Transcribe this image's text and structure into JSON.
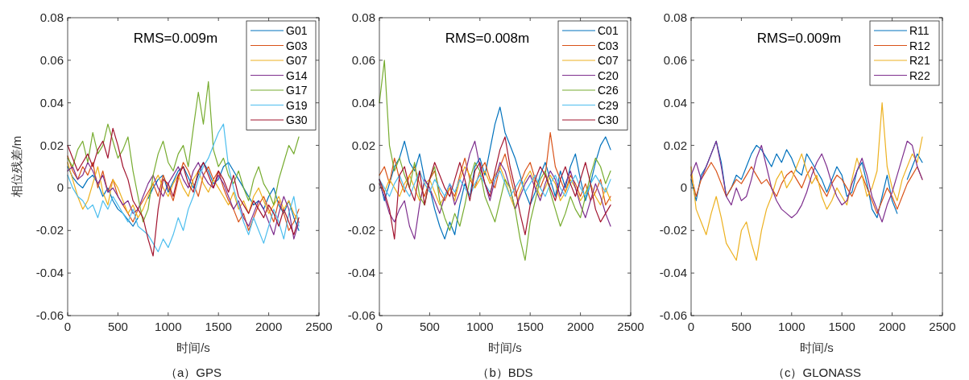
{
  "chart_data": [
    {
      "type": "line",
      "title": "（a）GPS",
      "xlabel": "时间/s",
      "ylabel": "相位残差/m",
      "annotations": [
        "RMS=0.009m"
      ],
      "legend": "top right",
      "xlim": [
        0,
        2500
      ],
      "xticks": [
        0,
        500,
        1000,
        1500,
        2000,
        2500
      ],
      "ylim": [
        -0.06,
        0.08
      ],
      "yticks": [
        -0.06,
        -0.04,
        -0.02,
        0,
        0.02,
        0.04,
        0.06,
        0.08
      ],
      "x": [
        0,
        50,
        100,
        150,
        200,
        250,
        300,
        350,
        400,
        450,
        500,
        550,
        600,
        650,
        700,
        750,
        800,
        850,
        900,
        950,
        1000,
        1050,
        1100,
        1150,
        1200,
        1250,
        1300,
        1350,
        1400,
        1450,
        1500,
        1550,
        1600,
        1650,
        1700,
        1750,
        1800,
        1850,
        1900,
        1950,
        2000,
        2050,
        2100,
        2150,
        2200,
        2250,
        2300
      ],
      "series": [
        {
          "name": "G01",
          "color": "#0072bd",
          "values": [
            0.01,
            0.005,
            0.002,
            0.0,
            0.004,
            0.006,
            0.002,
            -0.004,
            0.0,
            -0.006,
            -0.01,
            -0.012,
            -0.015,
            -0.018,
            -0.014,
            null,
            -0.005,
            0.0,
            0.004,
            0.006,
            -0.002,
            0.003,
            0.008,
            0.01,
            0.005,
            0.0,
            0.006,
            0.012,
            0.008,
            0.002,
            0.004,
            0.01,
            0.012,
            0.008,
            0.004,
            0.0,
            -0.004,
            -0.008,
            -0.006,
            -0.01,
            -0.004,
            0.0,
            -0.008,
            -0.012,
            -0.006,
            -0.014,
            -0.02
          ]
        },
        {
          "name": "G03",
          "color": "#d95319",
          "values": [
            0.015,
            0.008,
            0.004,
            0.01,
            0.006,
            0.012,
            0.0,
            0.008,
            -0.002,
            0.004,
            -0.004,
            -0.008,
            -0.012,
            -0.016,
            -0.01,
            -0.006,
            -0.002,
            0.002,
            -0.004,
            0.006,
            0.0,
            -0.006,
            0.004,
            0.012,
            0.008,
            0.002,
            -0.004,
            0.006,
            0.01,
            0.004,
            0.008,
            0.0,
            -0.006,
            -0.01,
            -0.016,
            -0.012,
            -0.02,
            -0.014,
            -0.008,
            -0.004,
            -0.01,
            -0.016,
            -0.006,
            -0.012,
            -0.02,
            -0.016,
            -0.01
          ]
        },
        {
          "name": "G07",
          "color": "#edb120",
          "values": [
            0.012,
            0.004,
            -0.004,
            -0.01,
            -0.006,
            0.002,
            0.01,
            -0.002,
            -0.008,
            0.004,
            0.0,
            -0.006,
            -0.012,
            -0.008,
            -0.014,
            -0.01,
            -0.004,
            0.002,
            0.006,
            0.0,
            -0.004,
            0.002,
            0.006,
            0.0,
            -0.004,
            0.004,
            0.008,
            0.002,
            -0.002,
            0.004,
            0.0,
            -0.004,
            -0.008,
            -0.002,
            -0.01,
            -0.006,
            -0.012,
            -0.004,
            0.0,
            -0.006,
            -0.012,
            -0.008,
            -0.004,
            -0.01,
            -0.006,
            -0.012,
            -0.016
          ]
        },
        {
          "name": "G14",
          "color": "#7e2f8e",
          "values": [
            0.008,
            0.01,
            0.004,
            0.006,
            0.012,
            0.008,
            0.002,
            0.006,
            -0.002,
            0.0,
            -0.004,
            -0.008,
            -0.006,
            -0.012,
            -0.01,
            -0.004,
            0.002,
            0.006,
            0.0,
            -0.004,
            0.002,
            0.006,
            0.01,
            0.004,
            0.0,
            0.008,
            0.012,
            0.006,
            0.002,
            0.0,
            0.006,
            0.002,
            -0.004,
            -0.01,
            -0.006,
            -0.014,
            -0.018,
            -0.012,
            -0.006,
            -0.01,
            -0.016,
            -0.022,
            -0.012,
            -0.004,
            -0.01,
            -0.024,
            -0.016
          ]
        },
        {
          "name": "G17",
          "color": "#77ac30",
          "values": [
            0.014,
            0.01,
            0.018,
            0.022,
            0.012,
            0.026,
            0.016,
            0.02,
            0.03,
            0.022,
            0.014,
            0.018,
            0.024,
            0.008,
            -0.004,
            -0.016,
            -0.01,
            0.006,
            0.016,
            0.022,
            0.012,
            0.008,
            0.016,
            0.02,
            0.01,
            0.028,
            0.045,
            0.03,
            0.05,
            0.018,
            0.01,
            0.014,
            0.006,
            0.002,
            0.008,
            0.0,
            -0.006,
            0.004,
            0.01,
            0.002,
            -0.002,
            -0.008,
            0.004,
            0.012,
            0.02,
            0.016,
            0.024
          ]
        },
        {
          "name": "G19",
          "color": "#4dbeee",
          "values": [
            0.006,
            0.0,
            -0.004,
            -0.006,
            -0.01,
            -0.008,
            -0.014,
            -0.006,
            -0.01,
            -0.004,
            -0.008,
            -0.012,
            -0.016,
            -0.01,
            -0.018,
            -0.02,
            -0.022,
            -0.026,
            -0.03,
            -0.024,
            -0.028,
            -0.022,
            -0.014,
            -0.02,
            -0.01,
            -0.004,
            0.004,
            0.01,
            0.014,
            0.02,
            0.026,
            0.03,
            0.01,
            0.0,
            -0.008,
            -0.016,
            -0.022,
            -0.014,
            -0.02,
            -0.026,
            -0.018,
            -0.01,
            -0.016,
            -0.024,
            -0.012,
            -0.004,
            -0.018
          ]
        },
        {
          "name": "G30",
          "color": "#a2142f",
          "values": [
            0.02,
            0.014,
            0.008,
            0.012,
            0.016,
            0.01,
            0.018,
            0.022,
            0.014,
            0.028,
            0.02,
            0.01,
            0.004,
            -0.006,
            -0.01,
            -0.014,
            -0.024,
            -0.032,
            -0.01,
            0.004,
            0.002,
            -0.004,
            0.006,
            0.01,
            0.002,
            -0.002,
            0.008,
            0.012,
            0.006,
            0.0,
            0.008,
            0.004,
            -0.002,
            0.006,
            -0.004,
            -0.008,
            -0.012,
            -0.006,
            -0.01,
            -0.014,
            -0.008,
            -0.012,
            -0.018,
            -0.01,
            -0.016,
            -0.022,
            -0.014
          ]
        }
      ]
    },
    {
      "type": "line",
      "title": "（b）BDS",
      "xlabel": "时间/s",
      "annotations": [
        "RMS=0.008m"
      ],
      "legend": "top right",
      "xlim": [
        0,
        2500
      ],
      "xticks": [
        0,
        500,
        1000,
        1500,
        2000,
        2500
      ],
      "ylim": [
        -0.06,
        0.08
      ],
      "yticks": [
        -0.06,
        -0.04,
        -0.02,
        0,
        0.02,
        0.04,
        0.06,
        0.08
      ],
      "x": [
        0,
        50,
        100,
        150,
        200,
        250,
        300,
        350,
        400,
        450,
        500,
        550,
        600,
        650,
        700,
        750,
        800,
        850,
        900,
        950,
        1000,
        1050,
        1100,
        1150,
        1200,
        1250,
        1300,
        1350,
        1400,
        1450,
        1500,
        1550,
        1600,
        1650,
        1700,
        1750,
        1800,
        1850,
        1900,
        1950,
        2000,
        2050,
        2100,
        2150,
        2200,
        2250,
        2300
      ],
      "series": [
        {
          "name": "C01",
          "color": "#0072bd",
          "values": [
            0.004,
            -0.006,
            0.002,
            0.01,
            0.014,
            0.022,
            0.012,
            0.008,
            0.016,
            0.004,
            0.0,
            -0.01,
            -0.018,
            -0.024,
            -0.016,
            -0.022,
            -0.008,
            0.002,
            -0.004,
            0.01,
            0.014,
            0.006,
            0.018,
            0.03,
            0.038,
            0.026,
            0.02,
            0.014,
            0.006,
            -0.002,
            -0.008,
            -0.002,
            0.006,
            0.012,
            0.004,
            -0.004,
            0.008,
            0.0,
            0.01,
            0.016,
            0.004,
            -0.006,
            0.002,
            0.012,
            0.02,
            0.024,
            0.018
          ]
        },
        {
          "name": "C03",
          "color": "#d95319",
          "values": [
            0.006,
            0.01,
            0.002,
            0.014,
            0.004,
            -0.002,
            0.006,
            0.01,
            0.002,
            -0.004,
            0.004,
            0.008,
            -0.002,
            -0.006,
            0.0,
            -0.004,
            0.006,
            0.014,
            0.004,
            0.0,
            0.008,
            0.012,
            0.004,
            0.0,
            0.01,
            0.016,
            0.006,
            -0.004,
            0.002,
            0.008,
            0.012,
            0.004,
            0.0,
            0.006,
            0.026,
            0.01,
            0.004,
            -0.002,
            0.006,
            0.002,
            -0.004,
            0.002,
            -0.006,
            -0.002,
            0.004,
            -0.008,
            -0.004
          ]
        },
        {
          "name": "C07",
          "color": "#edb120",
          "values": [
            0.002,
            -0.002,
            0.004,
            0.0,
            -0.004,
            0.002,
            0.006,
            0.0,
            -0.006,
            0.002,
            0.004,
            -0.002,
            -0.008,
            -0.004,
            0.0,
            -0.006,
            0.004,
            0.01,
            0.006,
            0.0,
            0.004,
            0.008,
            0.002,
            0.006,
            0.01,
            0.004,
            -0.004,
            -0.01,
            -0.002,
            0.004,
            0.008,
            0.002,
            -0.004,
            0.0,
            0.006,
            0.002,
            -0.006,
            -0.002,
            0.004,
            0.0,
            -0.006,
            -0.002,
            0.002,
            -0.004,
            -0.008,
            0.0,
            -0.006
          ]
        },
        {
          "name": "C20",
          "color": "#7e2f8e",
          "values": [
            0.002,
            -0.004,
            -0.012,
            -0.016,
            -0.01,
            -0.006,
            -0.018,
            -0.024,
            -0.008,
            0.004,
            0.0,
            -0.006,
            -0.012,
            -0.004,
            0.002,
            -0.008,
            -0.002,
            0.006,
            0.016,
            0.022,
            0.01,
            0.002,
            -0.006,
            0.004,
            0.012,
            0.008,
            0.0,
            -0.01,
            -0.004,
            0.002,
            0.006,
            0.0,
            -0.006,
            0.002,
            0.008,
            0.004,
            -0.004,
            0.002,
            0.008,
            0.0,
            -0.008,
            -0.014,
            -0.006,
            0.002,
            -0.004,
            -0.012,
            -0.018
          ]
        },
        {
          "name": "C26",
          "color": "#77ac30",
          "values": [
            0.04,
            0.06,
            0.02,
            0.008,
            0.014,
            0.006,
            0.0,
            0.012,
            -0.004,
            -0.008,
            0.004,
            0.01,
            -0.006,
            -0.014,
            -0.02,
            -0.012,
            -0.018,
            -0.008,
            0.004,
            0.012,
            0.008,
            -0.004,
            -0.01,
            -0.016,
            -0.006,
            0.004,
            0.0,
            -0.01,
            -0.024,
            -0.034,
            -0.016,
            -0.006,
            0.004,
            0.008,
            -0.002,
            -0.01,
            -0.018,
            -0.012,
            -0.004,
            -0.01,
            -0.014,
            -0.004,
            0.006,
            0.014,
            0.01,
            0.002,
            0.008
          ]
        },
        {
          "name": "C29",
          "color": "#4dbeee",
          "values": [
            0.004,
            0.0,
            -0.004,
            0.002,
            0.006,
            0.0,
            -0.004,
            0.002,
            0.008,
            0.002,
            -0.002,
            0.004,
            0.0,
            -0.004,
            0.002,
            -0.002,
            0.004,
            0.0,
            -0.004,
            0.002,
            0.006,
            0.002,
            -0.002,
            0.004,
            0.008,
            0.002,
            -0.004,
            0.0,
            0.004,
            -0.002,
            0.002,
            0.006,
            0.0,
            -0.004,
            0.002,
            0.006,
            0.0,
            -0.004,
            0.002,
            0.006,
            0.0,
            -0.004,
            0.002,
            0.006,
            0.002,
            -0.002,
            0.004
          ]
        },
        {
          "name": "C30",
          "color": "#a2142f",
          "values": [
            0.004,
            -0.002,
            -0.01,
            -0.024,
            0.006,
            0.01,
            0.0,
            -0.006,
            0.008,
            -0.008,
            0.004,
            0.012,
            0.006,
            0.0,
            -0.004,
            0.004,
            0.012,
            0.004,
            -0.006,
            0.008,
            0.012,
            0.002,
            -0.004,
            0.008,
            0.018,
            0.024,
            0.01,
            0.0,
            -0.012,
            -0.022,
            -0.008,
            0.004,
            0.01,
            0.006,
            0.0,
            -0.006,
            0.004,
            0.01,
            0.002,
            -0.004,
            0.004,
            0.012,
            0.002,
            -0.01,
            -0.016,
            -0.012,
            -0.008
          ]
        }
      ]
    },
    {
      "type": "line",
      "title": "（c）GLONASS",
      "xlabel": "时间/s",
      "annotations": [
        "RMS=0.009m"
      ],
      "legend": "top right",
      "xlim": [
        0,
        2500
      ],
      "xticks": [
        0,
        500,
        1000,
        1500,
        2000,
        2500
      ],
      "ylim": [
        -0.06,
        0.08
      ],
      "yticks": [
        -0.06,
        -0.04,
        -0.02,
        0,
        0.02,
        0.04,
        0.06,
        0.08
      ],
      "x": [
        0,
        50,
        100,
        150,
        200,
        250,
        300,
        350,
        400,
        450,
        500,
        550,
        600,
        650,
        700,
        750,
        800,
        850,
        900,
        950,
        1000,
        1050,
        1100,
        1150,
        1200,
        1250,
        1300,
        1350,
        1400,
        1450,
        1500,
        1550,
        1600,
        1650,
        1700,
        1750,
        1800,
        1850,
        1900,
        1950,
        2000,
        2050,
        2100,
        2150,
        2200,
        2250,
        2300
      ],
      "series": [
        {
          "name": "R11",
          "color": "#0072bd",
          "values": [
            0.004,
            -0.006,
            0.006,
            0.01,
            0.016,
            0.022,
            0.012,
            -0.004,
            0.0,
            0.006,
            0.004,
            0.01,
            0.016,
            0.02,
            0.018,
            0.014,
            0.01,
            0.016,
            0.012,
            0.018,
            0.014,
            0.008,
            0.006,
            0.016,
            0.012,
            0.008,
            0.004,
            -0.002,
            0.004,
            0.01,
            0.006,
            -0.004,
            -0.002,
            0.008,
            0.012,
            0.002,
            -0.01,
            -0.014,
            -0.004,
            0.006,
            -0.006,
            -0.012,
            null,
            0.004,
            0.01,
            0.016,
            0.012
          ]
        },
        {
          "name": "R12",
          "color": "#d95319",
          "values": [
            0.006,
            -0.004,
            0.004,
            0.008,
            0.012,
            0.008,
            0.002,
            -0.004,
            0.0,
            0.004,
            0.002,
            0.006,
            0.01,
            0.006,
            0.002,
            0.004,
            0.0,
            -0.004,
            0.002,
            0.006,
            0.008,
            0.004,
            0.0,
            0.006,
            0.01,
            0.004,
            0.0,
            -0.004,
            0.002,
            0.006,
            0.004,
            0.0,
            -0.004,
            0.002,
            0.006,
            0.0,
            -0.006,
            -0.012,
            -0.006,
            0.0,
            -0.004,
            -0.01,
            -0.004,
            0.002,
            0.006,
            0.01,
            0.004
          ]
        },
        {
          "name": "R21",
          "color": "#edb120",
          "values": [
            0.01,
            -0.01,
            -0.016,
            -0.022,
            -0.012,
            -0.004,
            -0.014,
            -0.026,
            -0.03,
            -0.034,
            -0.02,
            -0.016,
            -0.026,
            -0.034,
            -0.02,
            -0.01,
            -0.004,
            0.004,
            0.008,
            0.0,
            0.004,
            0.01,
            0.016,
            0.008,
            0.002,
            0.006,
            -0.004,
            -0.01,
            -0.006,
            0.0,
            -0.004,
            -0.008,
            0.004,
            0.014,
            0.006,
            -0.004,
            0.0,
            0.008,
            0.04,
            0.01,
            0.0,
            -0.006,
            0.004,
            0.01,
            0.016,
            0.012,
            0.024
          ]
        },
        {
          "name": "R22",
          "color": "#7e2f8e",
          "values": [
            0.006,
            0.012,
            0.004,
            0.01,
            0.016,
            0.022,
            0.01,
            -0.004,
            -0.008,
            0.0,
            -0.006,
            -0.004,
            0.004,
            0.014,
            0.02,
            0.01,
            0.0,
            -0.006,
            -0.01,
            -0.012,
            -0.014,
            -0.012,
            -0.008,
            -0.002,
            0.006,
            0.012,
            0.016,
            0.01,
            0.002,
            -0.004,
            -0.008,
            -0.006,
            0.002,
            0.008,
            0.014,
            0.006,
            -0.004,
            -0.01,
            -0.016,
            -0.008,
            -0.002,
            0.006,
            0.014,
            0.022,
            0.02,
            0.01,
            0.004
          ]
        }
      ]
    }
  ]
}
